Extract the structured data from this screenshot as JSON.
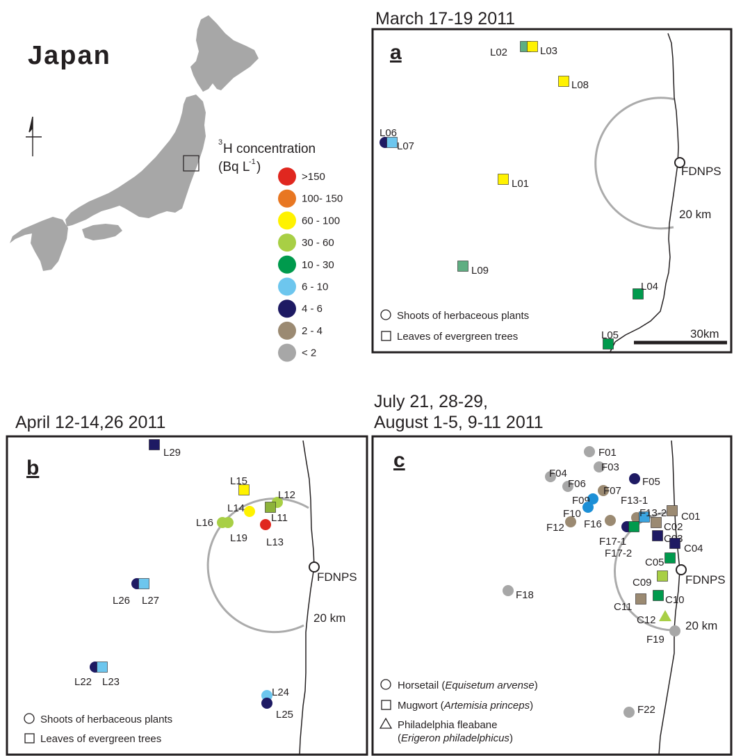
{
  "overview": {
    "country": "Japan",
    "concentration_title": "H concentration",
    "concentration_superscript": "3",
    "concentration_unit": "(Bq L",
    "concentration_unit_exp": "-1",
    "concentration_unit_close": ")",
    "classes": [
      {
        "label": ">150",
        "color": "#e0271f"
      },
      {
        "label": "100- 150",
        "color": "#e87722"
      },
      {
        "label": "60 - 100",
        "color": "#fff200"
      },
      {
        "label": "30 - 60",
        "color": "#a8cf45"
      },
      {
        "label": "10 - 30",
        "color": "#009a4d"
      },
      {
        "label": "6 - 10",
        "color": "#6dc6ee"
      },
      {
        "label": "4 - 6",
        "color": "#1e1a63"
      },
      {
        "label": "2 - 4",
        "color": "#9b8a72"
      },
      {
        "label": "< 2",
        "color": "#a7a7a7"
      }
    ]
  },
  "panels": [
    {
      "id": "a",
      "title": "March 17-19 2011",
      "letter": "a",
      "plant_label": "FDNPS",
      "radius_label": "20 km",
      "scale_label": "30km",
      "legend": [
        {
          "shape": "circle",
          "text": "Shoots of herbaceous plants"
        },
        {
          "shape": "square",
          "text": "Leaves of evergreen trees"
        }
      ],
      "samples": [
        {
          "id": "L02",
          "shape": "square",
          "color": "#5fae82"
        },
        {
          "id": "L03",
          "shape": "square",
          "color": "#fff200"
        },
        {
          "id": "L08",
          "shape": "square",
          "color": "#fff200"
        },
        {
          "id": "L06",
          "shape": "circle",
          "color": "#1e1a63"
        },
        {
          "id": "L07",
          "shape": "square",
          "color": "#6dc6ee"
        },
        {
          "id": "L01",
          "shape": "square",
          "color": "#fff200"
        },
        {
          "id": "L09",
          "shape": "square",
          "color": "#5fae82"
        },
        {
          "id": "L04",
          "shape": "square",
          "color": "#009a4d"
        },
        {
          "id": "L05",
          "shape": "square",
          "color": "#009a4d"
        }
      ]
    },
    {
      "id": "b",
      "title": "April 12-14,26  2011",
      "letter": "b",
      "plant_label": "FDNPS",
      "radius_label": "20 km",
      "legend": [
        {
          "shape": "circle",
          "text": "Shoots of herbaceous plants"
        },
        {
          "shape": "square",
          "text": "Leaves of evergreen trees"
        }
      ],
      "samples": [
        {
          "id": "L29",
          "shape": "square",
          "color": "#1e1a63"
        },
        {
          "id": "L15",
          "shape": "square",
          "color": "#fff200"
        },
        {
          "id": "L12",
          "shape": "circle",
          "color": "#a8cf45"
        },
        {
          "id": "L14",
          "shape": "circle",
          "color": "#fff200"
        },
        {
          "id": "L11",
          "shape": "square",
          "color": "#8db33a"
        },
        {
          "id": "L16",
          "shape": "circle",
          "color": "#a8cf45"
        },
        {
          "id": "L19",
          "shape": "circle",
          "color": "#a8cf45"
        },
        {
          "id": "L13",
          "shape": "circle",
          "color": "#e0271f"
        },
        {
          "id": "L26",
          "shape": "circle",
          "color": "#1e1a63"
        },
        {
          "id": "L27",
          "shape": "square",
          "color": "#6dc6ee"
        },
        {
          "id": "L22",
          "shape": "circle",
          "color": "#1e1a63"
        },
        {
          "id": "L23",
          "shape": "square",
          "color": "#6dc6ee"
        },
        {
          "id": "L24",
          "shape": "circle",
          "color": "#6dc6ee"
        },
        {
          "id": "L25",
          "shape": "circle",
          "color": "#1e1a63"
        }
      ]
    },
    {
      "id": "c",
      "title_line1": "July 21, 28-29,",
      "title_line2": "August 1-5, 9-11 2011",
      "letter": "c",
      "plant_label": "FDNPS",
      "radius_label": "20 km",
      "legend": [
        {
          "shape": "circle",
          "text": "Horsetail (",
          "italic": "Equisetum arvense",
          "close": ")"
        },
        {
          "shape": "square",
          "text": "Mugwort (",
          "italic": "Artemisia princeps",
          "close": ")"
        },
        {
          "shape": "triangle",
          "text": "Philadelphia fleabane",
          "text2": "(",
          "italic": "Erigeron philadelphicus",
          "close": ")"
        }
      ],
      "samples": [
        {
          "id": "F01",
          "shape": "circle",
          "color": "#a7a7a7"
        },
        {
          "id": "F03",
          "shape": "circle",
          "color": "#a7a7a7"
        },
        {
          "id": "F04",
          "shape": "circle",
          "color": "#a7a7a7"
        },
        {
          "id": "F06",
          "shape": "circle",
          "color": "#a7a7a7"
        },
        {
          "id": "F07",
          "shape": "circle",
          "color": "#9b8a72"
        },
        {
          "id": "F05",
          "shape": "circle",
          "color": "#1e1a63"
        },
        {
          "id": "F09",
          "shape": "circle",
          "color": "#1c8fd6"
        },
        {
          "id": "F10",
          "shape": "circle",
          "color": "#1c8fd6"
        },
        {
          "id": "F13-1",
          "shape": "circle",
          "color": "#9b8a72"
        },
        {
          "id": "F13-2",
          "shape": "square",
          "color": "#3aa4e0"
        },
        {
          "id": "C01",
          "shape": "square",
          "color": "#9b8a72"
        },
        {
          "id": "F12",
          "shape": "circle",
          "color": "#9b8a72"
        },
        {
          "id": "F16",
          "shape": "circle",
          "color": "#9b8a72"
        },
        {
          "id": "C02",
          "shape": "square",
          "color": "#9b8a72"
        },
        {
          "id": "F17-1",
          "shape": "circle",
          "color": "#1e1a63"
        },
        {
          "id": "F17-2",
          "shape": "square",
          "color": "#009a4d"
        },
        {
          "id": "C03",
          "shape": "square",
          "color": "#1e1a63"
        },
        {
          "id": "C04",
          "shape": "square",
          "color": "#1e1a63"
        },
        {
          "id": "C05",
          "shape": "square",
          "color": "#009a4d"
        },
        {
          "id": "C09",
          "shape": "square",
          "color": "#a8cf45"
        },
        {
          "id": "F18",
          "shape": "circle",
          "color": "#a7a7a7"
        },
        {
          "id": "C10",
          "shape": "square",
          "color": "#009a4d"
        },
        {
          "id": "C11",
          "shape": "square",
          "color": "#9b8a72"
        },
        {
          "id": "C12",
          "shape": "triangle",
          "color": "#a8cf45"
        },
        {
          "id": "F19",
          "shape": "circle",
          "color": "#a7a7a7"
        },
        {
          "id": "F22",
          "shape": "circle",
          "color": "#a7a7a7"
        }
      ]
    }
  ]
}
